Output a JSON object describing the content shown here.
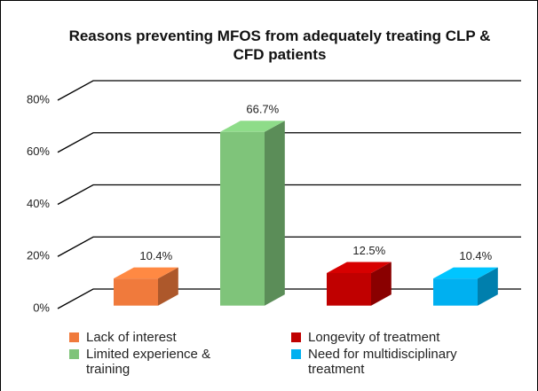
{
  "chart_data": {
    "type": "bar3d",
    "title": "Reasons preventing MFOS from adequately treating CLP & CFD patients",
    "categories": [
      "Lack of interest",
      "Limited experience & training",
      "Longevity of treatment",
      "Need for multidisciplinary treatment"
    ],
    "values": [
      10.4,
      66.7,
      12.5,
      10.4
    ],
    "value_labels": [
      "10.4%",
      "66.7%",
      "12.5%",
      "10.4%"
    ],
    "colors": [
      "#f07a3c",
      "#7fc47a",
      "#c00000",
      "#00b0f0"
    ],
    "ylim": [
      0,
      80
    ],
    "yticks": [
      {
        "value": 0,
        "label": "0%"
      },
      {
        "value": 20,
        "label": "20%"
      },
      {
        "value": 40,
        "label": "40%"
      },
      {
        "value": 60,
        "label": "60%"
      },
      {
        "value": 80,
        "label": "80%"
      }
    ],
    "grid": true,
    "legend": "bottom"
  }
}
